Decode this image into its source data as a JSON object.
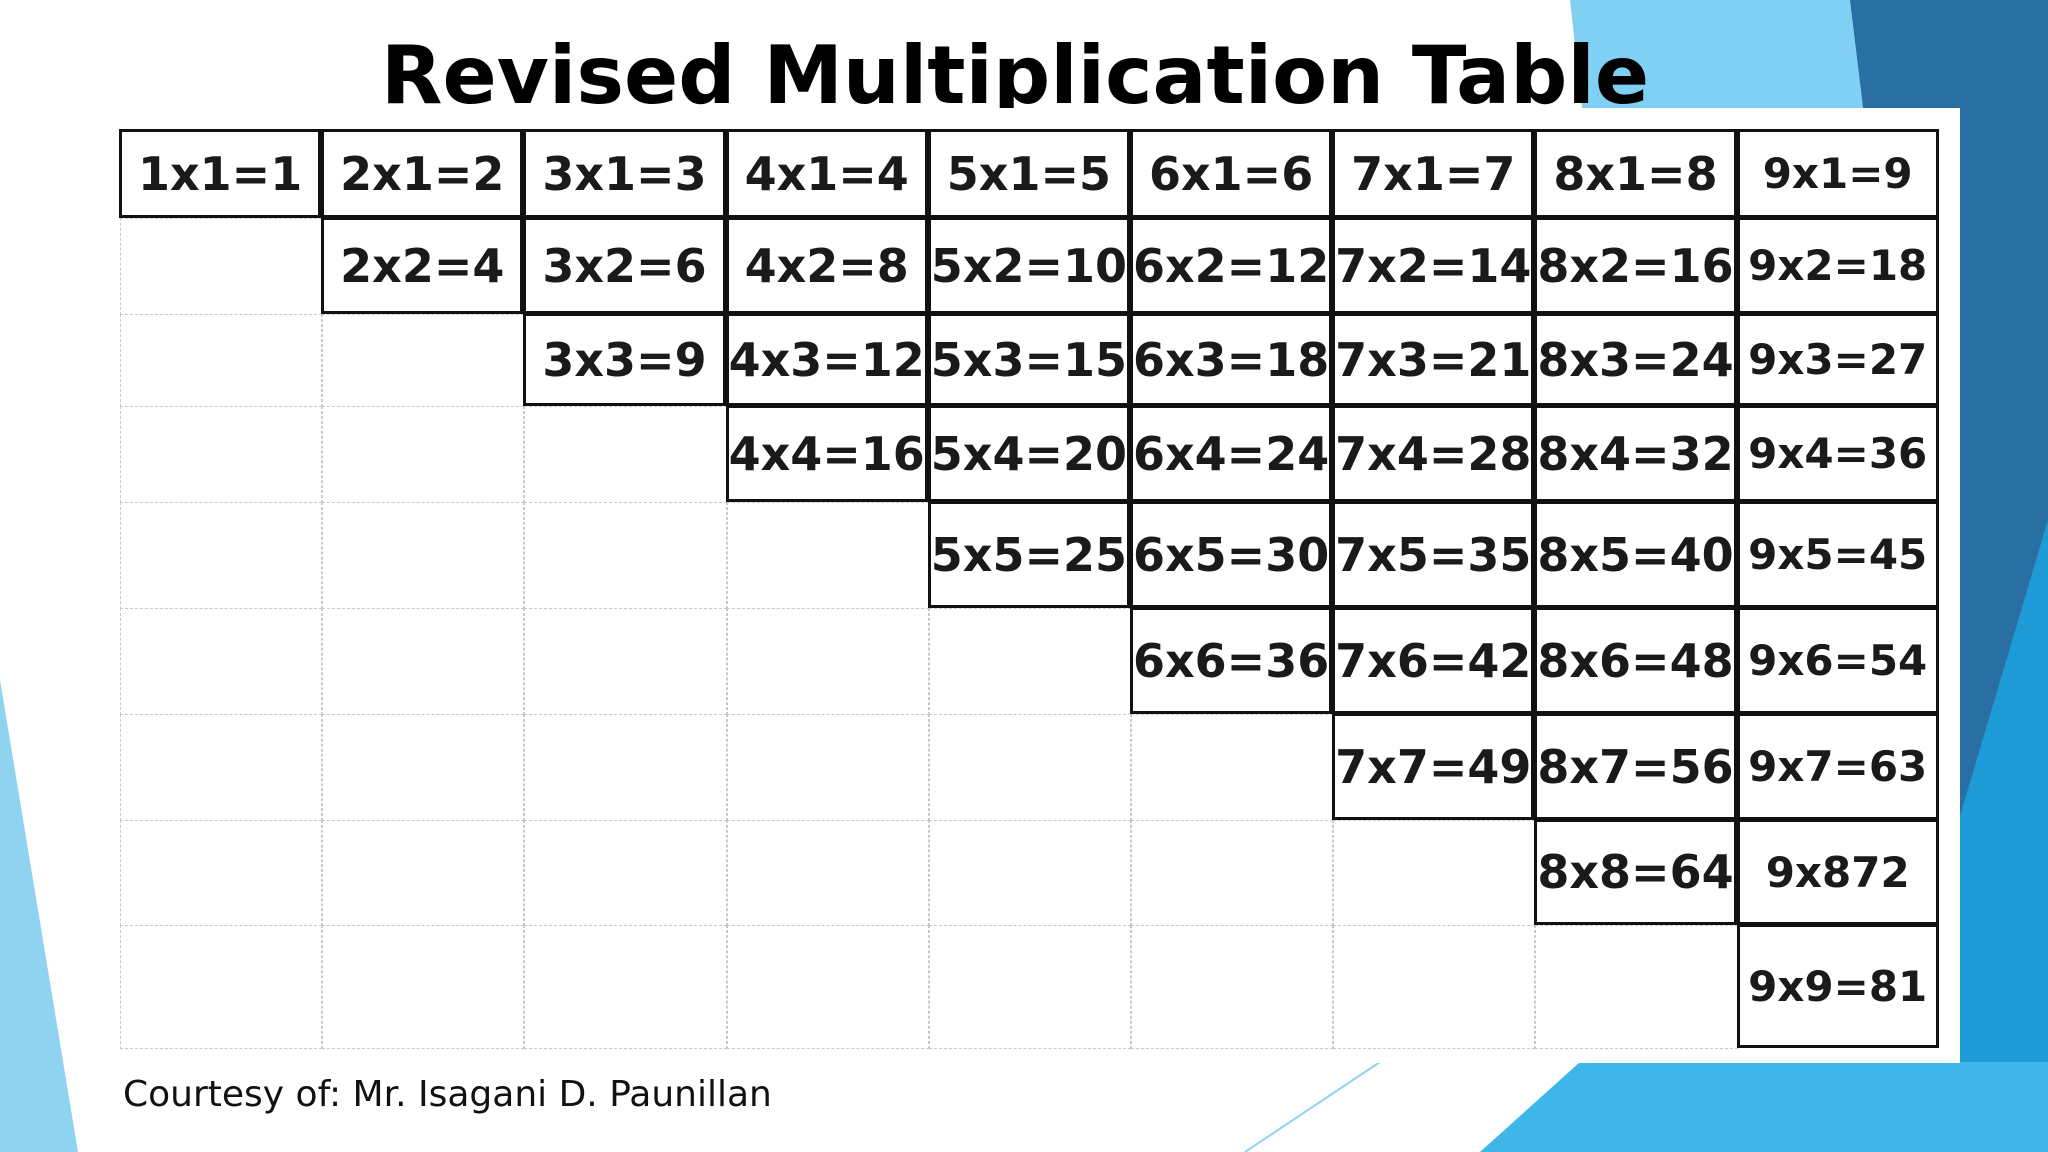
{
  "slide": {
    "title": "Revised Multiplication Table",
    "credit": "Courtesy of: Mr. Isagani D. Paunillan",
    "colors": {
      "accent_dark": "#2a6fa3",
      "accent_mid": "#1e9ad6",
      "accent_light": "#7fd0f2",
      "text": "#000000"
    }
  },
  "table": {
    "rows": [
      [
        "1x1=1",
        "2x1=2",
        "3x1=3",
        "4x1=4",
        "5x1=5",
        "6x1=6",
        "7x1=7",
        "8x1=8",
        "9x1=9"
      ],
      [
        "",
        "2x2=4",
        "3x2=6",
        "4x2=8",
        "5x2=10",
        "6x2=12",
        "7x2=14",
        "8x2=16",
        "9x2=18"
      ],
      [
        "",
        "",
        "3x3=9",
        "4x3=12",
        "5x3=15",
        "6x3=18",
        "7x3=21",
        "8x3=24",
        "9x3=27"
      ],
      [
        "",
        "",
        "",
        "4x4=16",
        "5x4=20",
        "6x4=24",
        "7x4=28",
        "8x4=32",
        "9x4=36"
      ],
      [
        "",
        "",
        "",
        "",
        "5x5=25",
        "6x5=30",
        "7x5=35",
        "8x5=40",
        "9x5=45"
      ],
      [
        "",
        "",
        "",
        "",
        "",
        "6x6=36",
        "7x6=42",
        "8x6=48",
        "9x6=54"
      ],
      [
        "",
        "",
        "",
        "",
        "",
        "",
        "7x7=49",
        "8x7=56",
        "9x7=63"
      ],
      [
        "",
        "",
        "",
        "",
        "",
        "",
        "",
        "8x8=64",
        "9x872"
      ],
      [
        "",
        "",
        "",
        "",
        "",
        "",
        "",
        "",
        "9x9=81"
      ]
    ]
  }
}
